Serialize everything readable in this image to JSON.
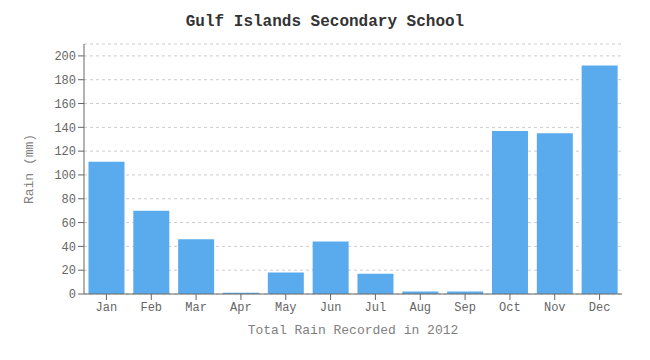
{
  "chart_data": {
    "type": "bar",
    "title": "Gulf Islands Secondary School",
    "xlabel": "Total Rain Recorded in 2012",
    "ylabel": "Rain (mm)",
    "categories": [
      "Jan",
      "Feb",
      "Mar",
      "Apr",
      "May",
      "Jun",
      "Jul",
      "Aug",
      "Sep",
      "Oct",
      "Nov",
      "Dec"
    ],
    "values": [
      111,
      70,
      46,
      1,
      18,
      44,
      17,
      2,
      2,
      137,
      135,
      192
    ],
    "color": "#5aabee",
    "ylim": [
      0,
      210
    ],
    "yticks": [
      0,
      20,
      40,
      60,
      80,
      100,
      120,
      140,
      160,
      180,
      200
    ],
    "grid": true
  }
}
